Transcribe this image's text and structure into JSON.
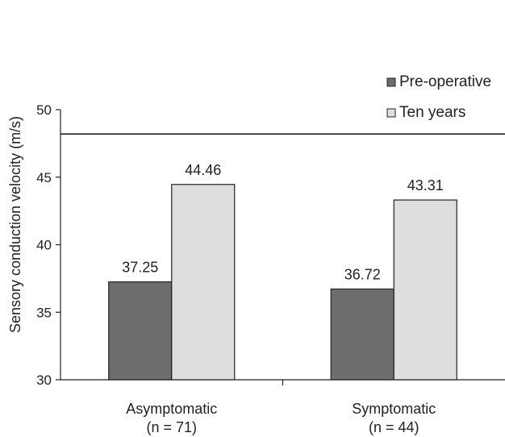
{
  "chart_data": {
    "type": "bar",
    "categories": [
      {
        "line1": "Asymptomatic",
        "line2": "(n = 71)"
      },
      {
        "line1": "Symptomatic",
        "line2": "(n = 44)"
      }
    ],
    "series": [
      {
        "name": "Pre-operative",
        "values": [
          37.25,
          36.72
        ],
        "labels": [
          "37.25",
          "36.72"
        ],
        "color": "#6d6d6d"
      },
      {
        "name": "Ten years",
        "values": [
          44.46,
          43.31
        ],
        "labels": [
          "44.46",
          "43.31"
        ],
        "color": "#dedede"
      }
    ],
    "ylabel": "Sensory conduction velocity (m/s)",
    "ylim": [
      30,
      50
    ],
    "yticks": [
      30,
      35,
      40,
      45,
      50
    ],
    "reference_line": 48.2,
    "legend_position": "top-right",
    "grid": false
  }
}
